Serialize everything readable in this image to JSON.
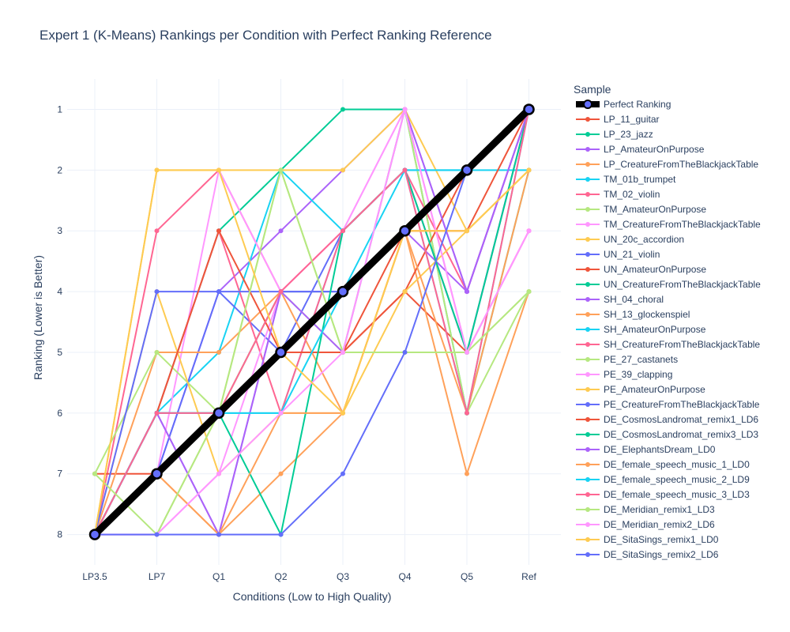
{
  "chart_data": {
    "type": "line",
    "title": "Expert 1 (K-Means) Rankings per Condition with Perfect Ranking Reference",
    "xlabel": "Conditions (Low to High Quality)",
    "ylabel": "Ranking (Lower is Better)",
    "legend_title": "Sample",
    "legend_position": "right",
    "grid": true,
    "categories": [
      "LP3.5",
      "LP7",
      "Q1",
      "Q2",
      "Q3",
      "Q4",
      "Q5",
      "Ref"
    ],
    "y_ticks": [
      "1",
      "2",
      "3",
      "4",
      "5",
      "6",
      "7",
      "8"
    ],
    "ylim": [
      8.5,
      0.5
    ],
    "y_reversed": true,
    "series": [
      {
        "name": "Perfect Ranking",
        "color": "#000000",
        "values": [
          8,
          7,
          6,
          5,
          4,
          3,
          2,
          1
        ]
      },
      {
        "name": "LP_11_guitar",
        "color": "#EF553B",
        "values": [
          8,
          7,
          6,
          5,
          5,
          4,
          5,
          1
        ]
      },
      {
        "name": "LP_23_jazz",
        "color": "#00CC96",
        "values": [
          8,
          6,
          3,
          2,
          1,
          1,
          6,
          2
        ]
      },
      {
        "name": "LP_AmateurOnPurpose",
        "color": "#AB63FA",
        "values": [
          8,
          7,
          4,
          3,
          2,
          1,
          4,
          1
        ]
      },
      {
        "name": "LP_CreatureFromTheBlackjackTable",
        "color": "#FFA15A",
        "values": [
          8,
          7,
          8,
          7,
          6,
          3,
          7,
          4
        ]
      },
      {
        "name": "TM_01b_trumpet",
        "color": "#19D3F3",
        "values": [
          8,
          6,
          5,
          2,
          3,
          2,
          2,
          1
        ]
      },
      {
        "name": "TM_02_violin",
        "color": "#FF6692",
        "values": [
          8,
          3,
          2,
          4,
          3,
          2,
          4,
          1
        ]
      },
      {
        "name": "TM_AmateurOnPurpose",
        "color": "#B6E880",
        "values": [
          8,
          8,
          6,
          2,
          5,
          1,
          6,
          4
        ]
      },
      {
        "name": "TM_CreatureFromTheBlackjackTable",
        "color": "#FF97FF",
        "values": [
          8,
          7,
          2,
          4,
          3,
          1,
          5,
          3
        ]
      },
      {
        "name": "UN_20c_accordion",
        "color": "#FECB52",
        "values": [
          8,
          2,
          2,
          2,
          2,
          1,
          3,
          2
        ]
      },
      {
        "name": "UN_21_violin",
        "color": "#636EFA",
        "values": [
          8,
          7,
          4,
          5,
          3,
          2,
          5,
          1
        ]
      },
      {
        "name": "UN_AmateurOnPurpose",
        "color": "#EF553B",
        "values": [
          7,
          7,
          6,
          5,
          5,
          4,
          2,
          1
        ]
      },
      {
        "name": "UN_CreatureFromTheBlackjackTable",
        "color": "#00CC96",
        "values": [
          8,
          6,
          6,
          4,
          4,
          3,
          2,
          1
        ]
      },
      {
        "name": "SH_04_choral",
        "color": "#AB63FA",
        "values": [
          8,
          6,
          8,
          4,
          4,
          3,
          4,
          1
        ]
      },
      {
        "name": "SH_13_glockenspiel",
        "color": "#FFA15A",
        "values": [
          8,
          5,
          5,
          4,
          6,
          3,
          3,
          2
        ]
      },
      {
        "name": "SH_AmateurOnPurpose",
        "color": "#19D3F3",
        "values": [
          8,
          6,
          6,
          6,
          3,
          2,
          2,
          2
        ]
      },
      {
        "name": "SH_CreatureFromTheBlackjackTable",
        "color": "#FF6692",
        "values": [
          8,
          6,
          3,
          6,
          3,
          2,
          5,
          3
        ]
      },
      {
        "name": "PE_27_castanets",
        "color": "#B6E880",
        "values": [
          7,
          5,
          6,
          4,
          5,
          5,
          5,
          4
        ]
      },
      {
        "name": "PE_39_clapping",
        "color": "#FF97FF",
        "values": [
          8,
          8,
          7,
          4,
          3,
          1,
          5,
          3
        ]
      },
      {
        "name": "PE_AmateurOnPurpose",
        "color": "#FECB52",
        "values": [
          8,
          4,
          7,
          6,
          6,
          4,
          3,
          2
        ]
      },
      {
        "name": "PE_CreatureFromTheBlackjackTable",
        "color": "#636EFA",
        "values": [
          8,
          4,
          4,
          4,
          4,
          3,
          2,
          1
        ]
      },
      {
        "name": "DE_CosmosLandromat_remix1_LD6",
        "color": "#EF553B",
        "values": [
          8,
          6,
          3,
          5,
          5,
          3,
          3,
          1
        ]
      },
      {
        "name": "DE_CosmosLandromat_remix3_LD3",
        "color": "#00CC96",
        "values": [
          8,
          6,
          6,
          8,
          3,
          2,
          5,
          1
        ]
      },
      {
        "name": "DE_ElephantsDream_LD0",
        "color": "#AB63FA",
        "values": [
          8,
          6,
          8,
          4,
          5,
          1,
          4,
          1
        ]
      },
      {
        "name": "DE_female_speech_music_1_LD0",
        "color": "#FFA15A",
        "values": [
          8,
          7,
          8,
          6,
          6,
          3,
          6,
          2
        ]
      },
      {
        "name": "DE_female_speech_music_2_LD9",
        "color": "#19D3F3",
        "values": [
          8,
          6,
          6,
          6,
          4,
          2,
          6,
          1
        ]
      },
      {
        "name": "DE_female_speech_music_3_LD3",
        "color": "#FF6692",
        "values": [
          8,
          6,
          6,
          4,
          3,
          2,
          6,
          1
        ]
      },
      {
        "name": "DE_Meridian_remix1_LD3",
        "color": "#B6E880",
        "values": [
          7,
          8,
          6,
          2,
          5,
          5,
          5,
          4
        ]
      },
      {
        "name": "DE_Meridian_remix2_LD6",
        "color": "#FF97FF",
        "values": [
          8,
          8,
          7,
          6,
          5,
          1,
          5,
          3
        ]
      },
      {
        "name": "DE_SitaSings_remix1_LD0",
        "color": "#FECB52",
        "values": [
          8,
          2,
          2,
          5,
          6,
          3,
          3,
          2
        ]
      },
      {
        "name": "DE_SitaSings_remix2_LD6",
        "color": "#636EFA",
        "values": [
          8,
          8,
          8,
          8,
          7,
          5,
          2,
          1
        ]
      }
    ]
  }
}
